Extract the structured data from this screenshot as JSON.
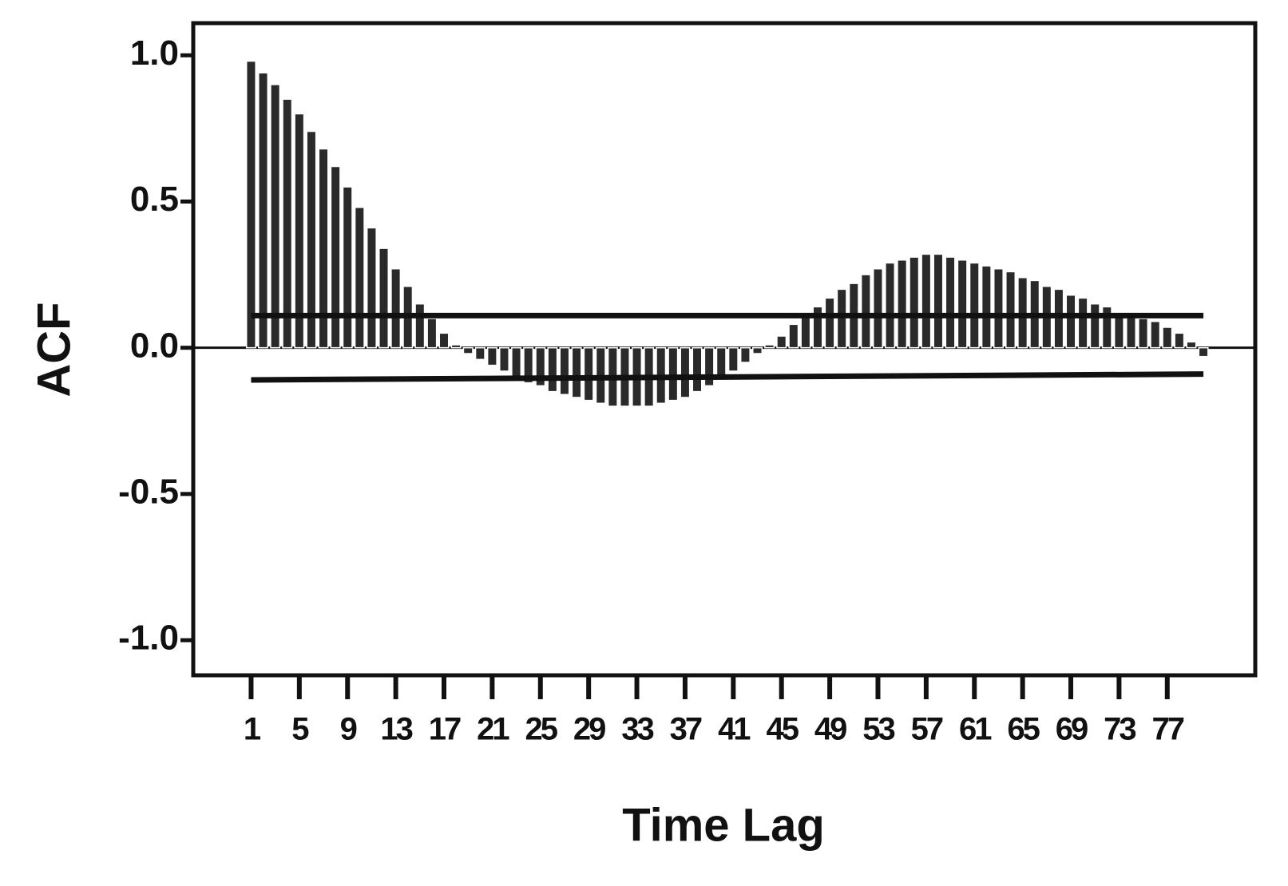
{
  "chart_data": {
    "type": "bar",
    "x_label": "Time Lag",
    "y_label": "ACF",
    "x": [
      1,
      2,
      3,
      4,
      5,
      6,
      7,
      8,
      9,
      10,
      11,
      12,
      13,
      14,
      15,
      16,
      17,
      18,
      19,
      20,
      21,
      22,
      23,
      24,
      25,
      26,
      27,
      28,
      29,
      30,
      31,
      32,
      33,
      34,
      35,
      36,
      37,
      38,
      39,
      40,
      41,
      42,
      43,
      44,
      45,
      46,
      47,
      48,
      49,
      50,
      51,
      52,
      53,
      54,
      55,
      56,
      57,
      58,
      59,
      60,
      61,
      62,
      63,
      64,
      65,
      66,
      67,
      68,
      69,
      70,
      71,
      72,
      73,
      74,
      75,
      76,
      77,
      78,
      79,
      80
    ],
    "values": [
      0.98,
      0.94,
      0.9,
      0.85,
      0.8,
      0.74,
      0.68,
      0.62,
      0.55,
      0.48,
      0.41,
      0.34,
      0.27,
      0.21,
      0.15,
      0.1,
      0.05,
      0.01,
      -0.02,
      -0.04,
      -0.06,
      -0.08,
      -0.1,
      -0.12,
      -0.13,
      -0.15,
      -0.16,
      -0.17,
      -0.18,
      -0.19,
      -0.2,
      -0.2,
      -0.2,
      -0.2,
      -0.19,
      -0.18,
      -0.17,
      -0.15,
      -0.13,
      -0.1,
      -0.08,
      -0.05,
      -0.02,
      0.01,
      0.04,
      0.08,
      0.11,
      0.14,
      0.17,
      0.2,
      0.22,
      0.25,
      0.27,
      0.29,
      0.3,
      0.31,
      0.32,
      0.32,
      0.31,
      0.3,
      0.29,
      0.28,
      0.27,
      0.26,
      0.24,
      0.23,
      0.21,
      0.2,
      0.18,
      0.17,
      0.15,
      0.14,
      0.12,
      0.11,
      0.1,
      0.09,
      0.07,
      0.05,
      0.02,
      -0.03
    ],
    "color": "#2a2a2a",
    "confidence_limits": {
      "x": [
        1,
        80
      ],
      "upper": [
        0.11,
        0.11
      ],
      "lower": [
        -0.11,
        -0.09
      ],
      "color": "#111111"
    },
    "xlim": [
      -3.8,
      84.3
    ],
    "xticks": [
      1,
      5,
      9,
      13,
      17,
      21,
      25,
      29,
      33,
      37,
      41,
      45,
      49,
      53,
      57,
      61,
      65,
      69,
      73,
      77
    ],
    "ylim": [
      -1.12,
      1.11
    ],
    "yticks": [
      {
        "value": -1,
        "label": "-1.0"
      },
      {
        "value": -0.5,
        "label": "-0.5"
      },
      {
        "value": 0,
        "label": "0.0"
      },
      {
        "value": 0.5,
        "label": "0.5"
      },
      {
        "value": 1,
        "label": "1.0"
      }
    ]
  }
}
